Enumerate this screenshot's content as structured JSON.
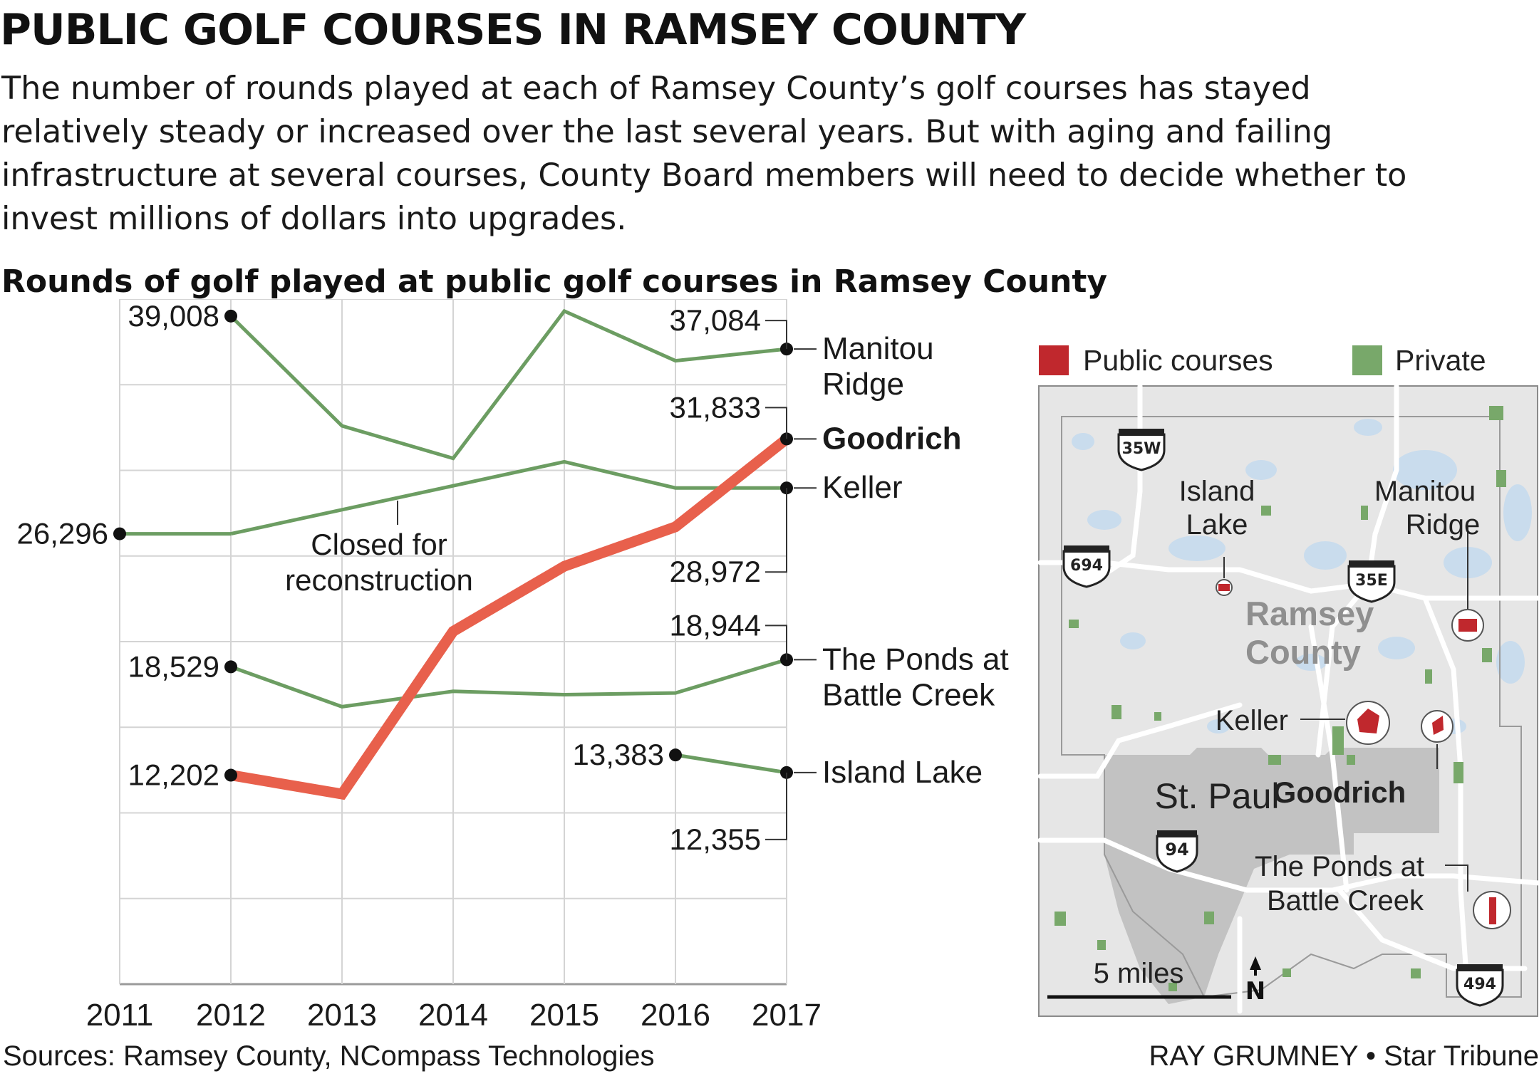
{
  "headline": "PUBLIC GOLF COURSES IN RAMSEY COUNTY",
  "intro": "The number of rounds played at each of Ramsey County’s golf courses has stayed relatively steady or increased over the last several years. But with aging and failing infrastructure at several courses, County Board members will need to decide whether to invest millions of dollars into upgrades.",
  "footer": {
    "source": "Sources: Ramsey County, NCompass Technologies",
    "credit": "RAY GRUMNEY • Star Tribune"
  },
  "colors": {
    "public": "#e8604c",
    "private": "#6c9d62",
    "map_public": "#c0282d",
    "map_private": "#78a86a"
  },
  "chart_data": {
    "type": "line",
    "title": "Rounds of golf played at public golf courses in Ramsey County",
    "categories": [
      "2011",
      "2012",
      "2013",
      "2014",
      "2015",
      "2016",
      "2017"
    ],
    "ylim": [
      0,
      40000
    ],
    "ylabel": "",
    "grid": true,
    "legend": "none",
    "series": [
      {
        "name": "Manitou Ridge",
        "color": "#6c9d62",
        "highlight": false,
        "values": [
          null,
          39008,
          32600,
          30700,
          39300,
          36400,
          37084
        ],
        "start_label": "39,008",
        "end_label": "37,084",
        "name_lines": [
          "Manitou",
          "Ridge"
        ]
      },
      {
        "name": "Goodrich",
        "color": "#e8604c",
        "highlight": true,
        "values": [
          null,
          12202,
          11100,
          20600,
          24400,
          26700,
          31833
        ],
        "start_label": "12,202",
        "end_label": "31,833",
        "name_lines": [
          "Goodrich"
        ]
      },
      {
        "name": "Keller",
        "segments": [
          [
            0,
            1
          ],
          [
            1,
            6
          ]
        ],
        "color": "#6c9d62",
        "highlight": false,
        "values": [
          26296,
          26296,
          27700,
          29100,
          30500,
          28972,
          28972
        ],
        "start_label": "26,296",
        "end_label": "28,972",
        "name_lines": [
          "Keller"
        ]
      },
      {
        "name": "The Ponds at Battle Creek",
        "color": "#6c9d62",
        "highlight": false,
        "values": [
          null,
          18529,
          16200,
          17100,
          16900,
          17000,
          18944
        ],
        "start_label": "18,529",
        "end_label": "18,944",
        "name_lines": [
          "The Ponds at",
          "Battle Creek"
        ]
      },
      {
        "name": "Island Lake",
        "color": "#6c9d62",
        "highlight": false,
        "values": [
          null,
          null,
          null,
          null,
          null,
          13383,
          12355
        ],
        "start_label": "13,383",
        "end_label": "12,355",
        "name_lines": [
          "Island Lake"
        ]
      }
    ],
    "annotation": {
      "lines": [
        "Closed for",
        "reconstruction"
      ]
    }
  },
  "map": {
    "legend": {
      "public": "Public courses",
      "private": "Private"
    },
    "county_label": [
      "Ramsey",
      "County"
    ],
    "city_label": "St. Paul",
    "scale_label": "5 miles",
    "north": "N",
    "highways": [
      "35W",
      "694",
      "35E",
      "94",
      "494"
    ],
    "course_labels": {
      "island_lake": [
        "Island",
        "Lake"
      ],
      "manitou_ridge": [
        "Manitou",
        "Ridge"
      ],
      "keller": "Keller",
      "goodrich": "Goodrich",
      "ponds": [
        "The Ponds at",
        "Battle Creek"
      ]
    }
  }
}
